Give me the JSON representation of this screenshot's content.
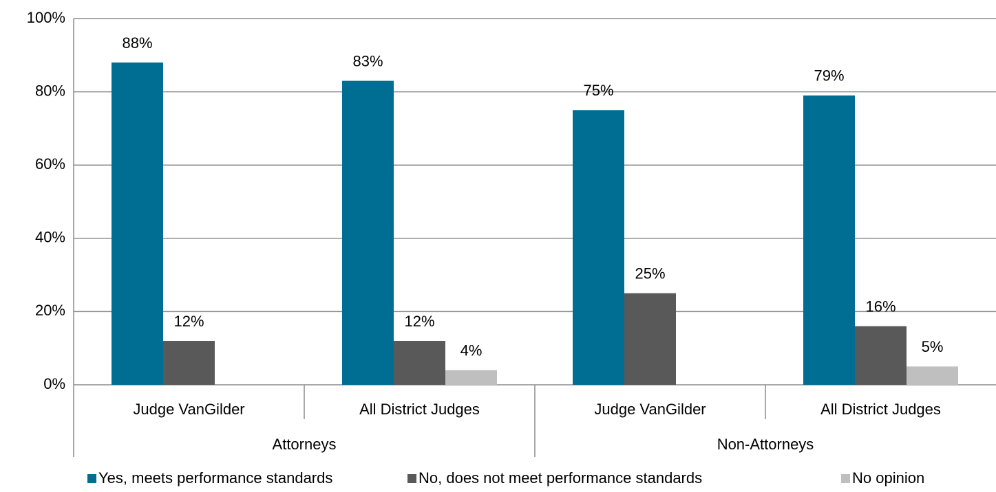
{
  "chart_data": {
    "type": "bar",
    "categories": [
      "Judge VanGilder",
      "All District Judges",
      "Judge VanGilder",
      "All District Judges"
    ],
    "groups": [
      "Attorneys",
      "Non-Attorneys"
    ],
    "series": [
      {
        "name": "Yes, meets performance standards",
        "color": "#006e93",
        "values": [
          88,
          83,
          75,
          79
        ],
        "value_labels": [
          "88%",
          "83%",
          "75%",
          "79%"
        ]
      },
      {
        "name": "No, does not meet performance standards",
        "color": "#595959",
        "values": [
          12,
          12,
          25,
          16
        ],
        "value_labels": [
          "12%",
          "12%",
          "25%",
          "16%"
        ]
      },
      {
        "name": "No opinion",
        "color": "#bfbfbf",
        "values": [
          null,
          4,
          null,
          5
        ],
        "value_labels": [
          null,
          "4%",
          null,
          "5%"
        ]
      }
    ],
    "ylim": [
      0,
      100
    ],
    "yticks": [
      {
        "value": 0,
        "label": "0%"
      },
      {
        "value": 20,
        "label": "20%"
      },
      {
        "value": 40,
        "label": "40%"
      },
      {
        "value": 60,
        "label": "60%"
      },
      {
        "value": 80,
        "label": "80%"
      },
      {
        "value": 100,
        "label": "100%"
      }
    ],
    "grid": true,
    "legend": "bottom"
  }
}
